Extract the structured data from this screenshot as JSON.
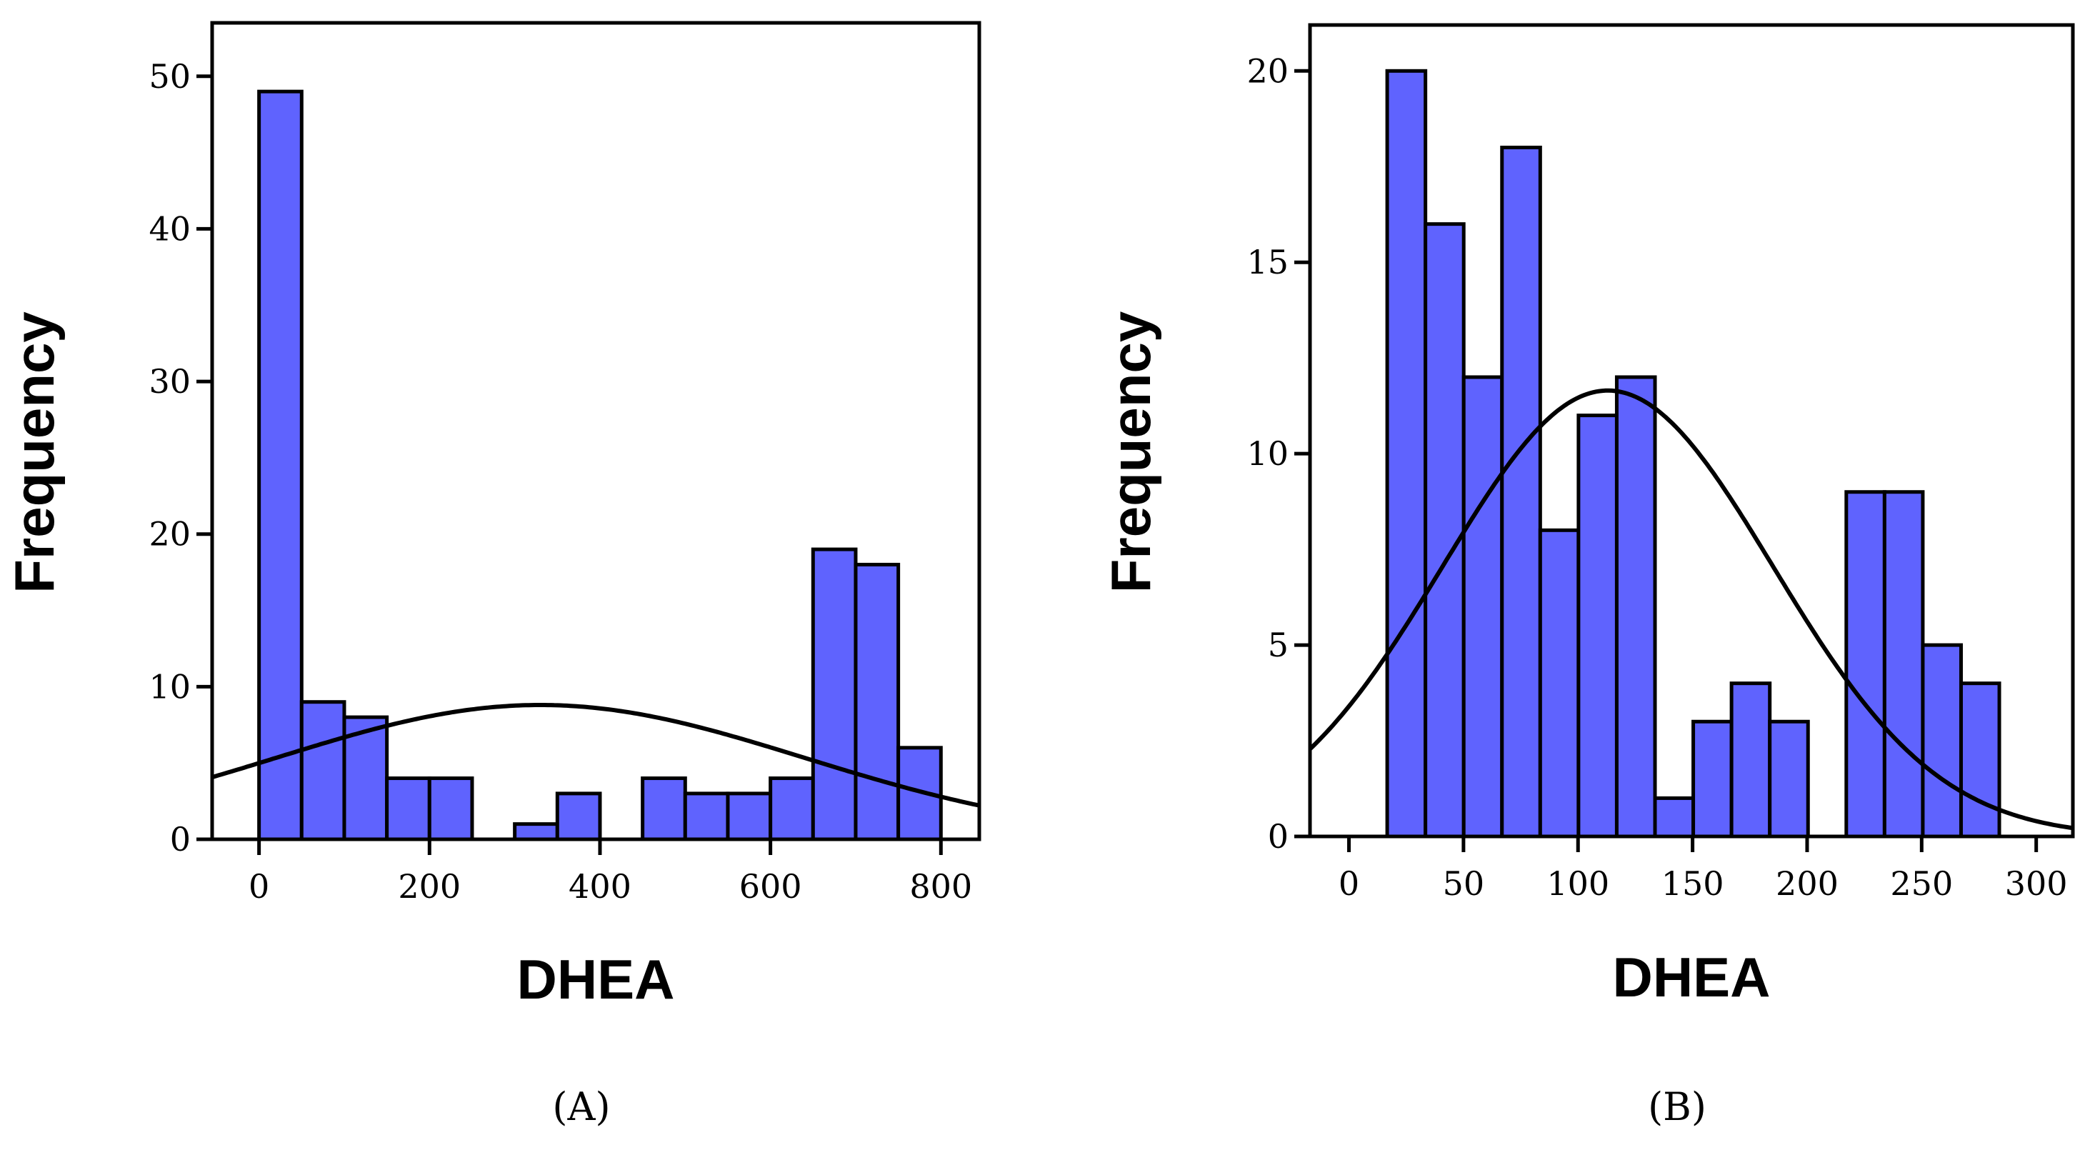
{
  "colors": {
    "bar_fill": "#5f63fe",
    "bar_stroke": "#000000",
    "curve": "#000000"
  },
  "chart_data": [
    {
      "type": "bar",
      "panel_label": "(A)",
      "xlabel": "DHEA",
      "ylabel": "Frequency",
      "xlim": [
        -55,
        845
      ],
      "ylim": [
        0,
        53.5
      ],
      "xticks": [
        0,
        200,
        400,
        600,
        800
      ],
      "yticks": [
        0,
        10,
        20,
        30,
        40,
        50
      ],
      "bin_width": 50,
      "bins": [
        {
          "x0": 0,
          "x1": 50,
          "count": 49
        },
        {
          "x0": 50,
          "x1": 100,
          "count": 9
        },
        {
          "x0": 100,
          "x1": 150,
          "count": 8
        },
        {
          "x0": 150,
          "x1": 200,
          "count": 4
        },
        {
          "x0": 200,
          "x1": 250,
          "count": 4
        },
        {
          "x0": 300,
          "x1": 350,
          "count": 1
        },
        {
          "x0": 350,
          "x1": 400,
          "count": 3
        },
        {
          "x0": 450,
          "x1": 500,
          "count": 4
        },
        {
          "x0": 500,
          "x1": 550,
          "count": 3
        },
        {
          "x0": 550,
          "x1": 600,
          "count": 3
        },
        {
          "x0": 600,
          "x1": 650,
          "count": 4
        },
        {
          "x0": 650,
          "x1": 700,
          "count": 19
        },
        {
          "x0": 700,
          "x1": 750,
          "count": 18
        },
        {
          "x0": 750,
          "x1": 800,
          "count": 6
        }
      ],
      "normal_curve": {
        "mean": 330,
        "sd": 310,
        "peak": 8.8
      },
      "grid": false,
      "legend": "none"
    },
    {
      "type": "bar",
      "panel_label": "(B)",
      "xlabel": "DHEA",
      "ylabel": "Frequency",
      "xlim": [
        -17,
        316
      ],
      "ylim": [
        0,
        21.2
      ],
      "xticks": [
        0,
        50,
        100,
        150,
        200,
        250,
        300
      ],
      "yticks": [
        0,
        5,
        10,
        15,
        20
      ],
      "bin_width": 16.7,
      "bins": [
        {
          "x0": 16.7,
          "x1": 33.4,
          "count": 20
        },
        {
          "x0": 33.4,
          "x1": 50.1,
          "count": 16
        },
        {
          "x0": 50.1,
          "x1": 66.8,
          "count": 12
        },
        {
          "x0": 66.8,
          "x1": 83.5,
          "count": 18
        },
        {
          "x0": 83.5,
          "x1": 100.2,
          "count": 8
        },
        {
          "x0": 100.2,
          "x1": 116.9,
          "count": 11
        },
        {
          "x0": 116.9,
          "x1": 133.6,
          "count": 12
        },
        {
          "x0": 133.6,
          "x1": 150.3,
          "count": 1
        },
        {
          "x0": 150.3,
          "x1": 167.0,
          "count": 3
        },
        {
          "x0": 167.0,
          "x1": 183.7,
          "count": 4
        },
        {
          "x0": 183.7,
          "x1": 200.4,
          "count": 3
        },
        {
          "x0": 217.1,
          "x1": 233.8,
          "count": 9
        },
        {
          "x0": 233.8,
          "x1": 250.5,
          "count": 9
        },
        {
          "x0": 250.5,
          "x1": 267.2,
          "count": 5
        },
        {
          "x0": 267.2,
          "x1": 283.9,
          "count": 4
        }
      ],
      "normal_curve": {
        "mean": 113,
        "sd": 72,
        "peak": 11.65
      },
      "grid": false,
      "legend": "none"
    }
  ]
}
